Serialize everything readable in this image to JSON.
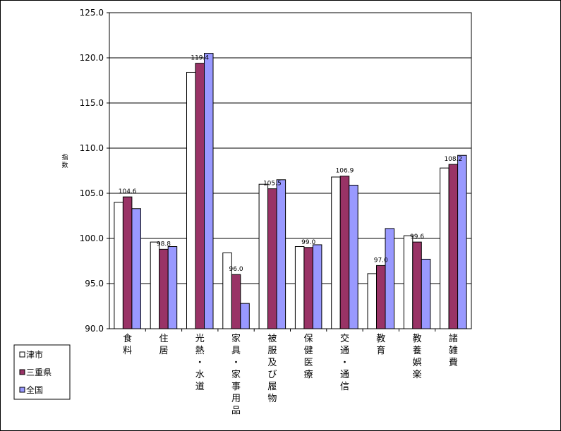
{
  "chart_data": {
    "type": "bar",
    "ylabel": "指数",
    "ylim": [
      90,
      125
    ],
    "yticks": [
      "90.0",
      "95.0",
      "100.0",
      "105.0",
      "110.0",
      "115.0",
      "120.0",
      "125.0"
    ],
    "grid": true,
    "legend_position": "bottom-left",
    "categories": [
      "食料",
      "住居",
      "光熱・水道",
      "家具・家事用品",
      "被服及び履物",
      "保健医療",
      "交通・通信",
      "教育",
      "教養娯楽",
      "諸雑費"
    ],
    "series": [
      {
        "name": "津市",
        "color": "#ffffff",
        "values": [
          104.0,
          99.6,
          118.4,
          98.4,
          106.0,
          99.1,
          106.8,
          96.1,
          100.3,
          107.8
        ]
      },
      {
        "name": "三重県",
        "color": "#993366",
        "values": [
          104.6,
          98.8,
          119.4,
          96.0,
          105.5,
          99.0,
          106.9,
          97.0,
          99.6,
          108.2
        ]
      },
      {
        "name": "全国",
        "color": "#9999ff",
        "values": [
          103.3,
          99.1,
          120.5,
          92.8,
          106.5,
          99.3,
          105.9,
          101.1,
          97.7,
          109.2
        ]
      }
    ],
    "data_labels": [
      {
        "category": "食料",
        "text": "104.6"
      },
      {
        "category": "住居",
        "text": "98.8"
      },
      {
        "category": "光熱・水道",
        "text": "119.4"
      },
      {
        "category": "家具・家事用品",
        "text": "96.0"
      },
      {
        "category": "被服及び履物",
        "text": "105.5"
      },
      {
        "category": "保健医療",
        "text": "99.0"
      },
      {
        "category": "交通・通信",
        "text": "106.9"
      },
      {
        "category": "教育",
        "text": "97.0"
      },
      {
        "category": "教養娯楽",
        "text": "99.6"
      },
      {
        "category": "諸雑費",
        "text": "108.2"
      }
    ]
  }
}
